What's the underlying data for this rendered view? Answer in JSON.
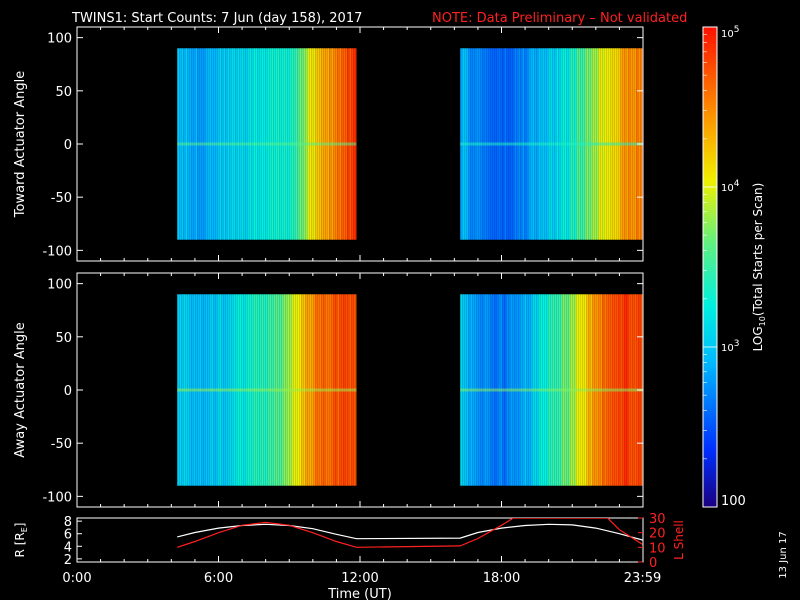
{
  "title": "TWINS1: Start Counts:  7 Jun (day 158), 2017",
  "note": "NOTE: Data Preliminary – Not validated",
  "date_stamp": "13 Jun 17",
  "colorbar": {
    "label": "LOG10(Total Starts per Scan)",
    "label_parts": [
      "LOG",
      "10",
      "(Total Starts per Scan)"
    ],
    "ticks": [
      {
        "text": "10",
        "sup": "5",
        "log": 5
      },
      {
        "text": "10",
        "sup": "4",
        "log": 4
      },
      {
        "text": "10",
        "sup": "3",
        "log": 3
      },
      {
        "text": "100",
        "sup": "",
        "log": 2
      }
    ],
    "range_log": [
      2,
      5
    ]
  },
  "colors": {
    "background": "#000000",
    "axes": "#ffffff",
    "note": "#ff2020",
    "r_line": "#ffffff",
    "lshell_line": "#ff2020"
  },
  "chart_data": [
    {
      "type": "heatmap",
      "title": "",
      "ylabel": "Toward Actuator Angle",
      "xlabel": "",
      "xlim_hours": [
        0,
        24
      ],
      "ylim": [
        -110,
        110
      ],
      "yticks": [
        100,
        50,
        0,
        -50,
        -100
      ],
      "y_extent": [
        -90,
        90
      ],
      "data_blocks": [
        {
          "t_start": 4.25,
          "t_end": 11.85,
          "profile": [
            [
              4.25,
              3.0
            ],
            [
              4.6,
              2.95
            ],
            [
              5.0,
              2.85
            ],
            [
              5.5,
              2.9
            ],
            [
              6.0,
              3.0
            ],
            [
              6.5,
              3.05
            ],
            [
              7.0,
              3.1
            ],
            [
              7.6,
              3.2
            ],
            [
              8.0,
              3.25
            ],
            [
              8.5,
              3.3
            ],
            [
              9.0,
              3.35
            ],
            [
              9.3,
              3.5
            ],
            [
              9.6,
              3.8
            ],
            [
              9.9,
              4.05
            ],
            [
              10.2,
              4.2
            ],
            [
              10.5,
              4.3
            ],
            [
              10.8,
              4.45
            ],
            [
              11.1,
              4.6
            ],
            [
              11.4,
              4.75
            ],
            [
              11.85,
              4.85
            ]
          ]
        },
        {
          "t_start": 16.25,
          "t_end": 23.98,
          "profile": [
            [
              16.25,
              2.9
            ],
            [
              16.6,
              2.8
            ],
            [
              17.0,
              2.7
            ],
            [
              17.5,
              2.6
            ],
            [
              18.0,
              2.55
            ],
            [
              18.5,
              2.6
            ],
            [
              19.0,
              2.75
            ],
            [
              19.5,
              2.9
            ],
            [
              20.0,
              3.0
            ],
            [
              20.5,
              3.15
            ],
            [
              21.0,
              3.35
            ],
            [
              21.4,
              3.55
            ],
            [
              21.8,
              3.8
            ],
            [
              22.2,
              4.0
            ],
            [
              22.6,
              4.15
            ],
            [
              23.0,
              4.3
            ],
            [
              23.5,
              4.45
            ],
            [
              23.98,
              4.55
            ]
          ]
        }
      ]
    },
    {
      "type": "heatmap",
      "title": "",
      "ylabel": "Away Actuator Angle",
      "xlabel": "",
      "xlim_hours": [
        0,
        24
      ],
      "ylim": [
        -110,
        110
      ],
      "yticks": [
        100,
        50,
        0,
        -50,
        -100
      ],
      "y_extent": [
        -90,
        90
      ],
      "data_blocks": [
        {
          "t_start": 4.25,
          "t_end": 11.85,
          "profile": [
            [
              4.25,
              3.05
            ],
            [
              4.6,
              3.0
            ],
            [
              5.0,
              2.9
            ],
            [
              5.5,
              2.95
            ],
            [
              6.0,
              3.05
            ],
            [
              6.5,
              3.1
            ],
            [
              7.0,
              3.2
            ],
            [
              7.6,
              3.35
            ],
            [
              8.0,
              3.45
            ],
            [
              8.5,
              3.6
            ],
            [
              9.0,
              3.85
            ],
            [
              9.3,
              4.05
            ],
            [
              9.6,
              4.3
            ],
            [
              9.9,
              4.45
            ],
            [
              10.2,
              4.55
            ],
            [
              10.5,
              4.6
            ],
            [
              10.8,
              4.65
            ],
            [
              11.1,
              4.7
            ],
            [
              11.4,
              4.75
            ],
            [
              11.85,
              4.8
            ]
          ]
        },
        {
          "t_start": 16.25,
          "t_end": 23.98,
          "profile": [
            [
              16.25,
              3.0
            ],
            [
              16.6,
              2.9
            ],
            [
              17.0,
              2.8
            ],
            [
              17.5,
              2.7
            ],
            [
              18.0,
              2.65
            ],
            [
              18.5,
              2.75
            ],
            [
              19.0,
              2.9
            ],
            [
              19.5,
              3.1
            ],
            [
              20.0,
              3.35
            ],
            [
              20.5,
              3.6
            ],
            [
              21.0,
              3.85
            ],
            [
              21.4,
              4.1
            ],
            [
              21.8,
              4.35
            ],
            [
              22.2,
              4.55
            ],
            [
              22.6,
              4.7
            ],
            [
              23.0,
              4.8
            ],
            [
              23.5,
              4.8
            ],
            [
              23.98,
              4.75
            ]
          ]
        }
      ]
    },
    {
      "type": "line",
      "title": "",
      "ylabel": "R [RE]",
      "ylabel_parts": [
        "R [R",
        "E",
        "]"
      ],
      "y2label": "L Shell",
      "xlabel": "Time (UT)",
      "xlim_hours": [
        0,
        24
      ],
      "xticks": [
        "0:00",
        "6:00",
        "12:00",
        "18:00",
        "23:59"
      ],
      "xtick_hours": [
        0,
        6,
        12,
        18,
        23.98
      ],
      "ylim": [
        1.5,
        8.5
      ],
      "yticks": [
        2,
        4,
        6,
        8
      ],
      "y2lim": [
        0,
        30
      ],
      "y2ticks": [
        0,
        10,
        20,
        30
      ],
      "series": [
        {
          "name": "R [RE]",
          "axis": "left",
          "color": "#ffffff",
          "x": [
            4.25,
            5.0,
            6.0,
            7.0,
            8.0,
            9.0,
            10.0,
            11.0,
            11.85,
            16.25,
            17.0,
            18.0,
            19.0,
            20.0,
            21.0,
            22.0,
            23.0,
            23.98
          ],
          "y": [
            5.5,
            6.2,
            6.9,
            7.3,
            7.5,
            7.3,
            6.8,
            5.9,
            5.2,
            5.3,
            6.2,
            6.9,
            7.3,
            7.5,
            7.4,
            6.9,
            6.0,
            5.0
          ]
        },
        {
          "name": "L Shell",
          "axis": "right",
          "color": "#ff2020",
          "x": [
            4.25,
            5.0,
            6.0,
            7.0,
            8.0,
            9.0,
            10.0,
            11.0,
            11.85,
            16.25,
            17.0,
            18.0,
            18.5,
            22.5,
            23.0,
            23.98
          ],
          "y": [
            10.0,
            14.0,
            20.0,
            25.0,
            27.0,
            25.0,
            20.0,
            14.0,
            10.0,
            11.0,
            16.0,
            25.0,
            30.0,
            30.0,
            22.0,
            12.0
          ]
        }
      ]
    }
  ]
}
